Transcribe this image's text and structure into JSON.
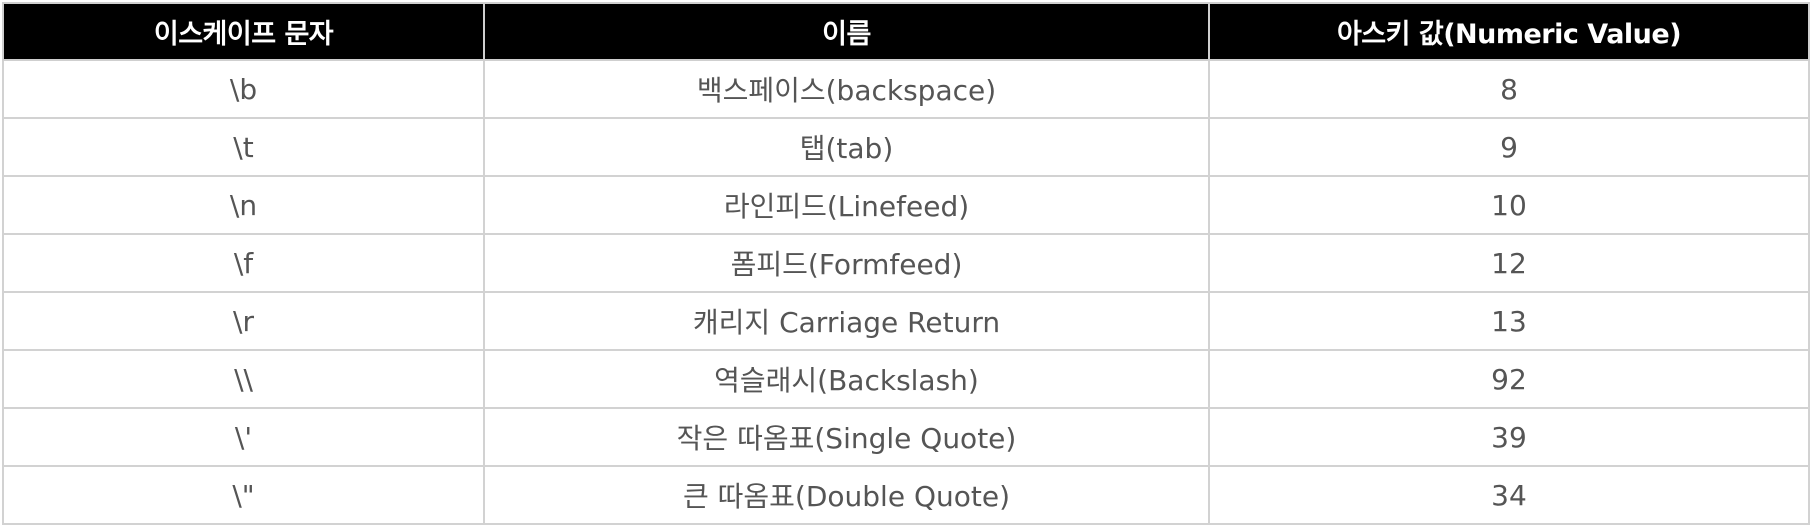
{
  "table": {
    "headers": [
      "이스케이프 문자",
      "이름",
      "아스키 값(Numeric Value)"
    ],
    "rows": [
      {
        "escape": "\\b",
        "name": "백스페이스(backspace)",
        "value": "8"
      },
      {
        "escape": "\\t",
        "name": "탭(tab)",
        "value": "9"
      },
      {
        "escape": "\\n",
        "name": "라인피드(Linefeed)",
        "value": "10"
      },
      {
        "escape": "\\f",
        "name": "폼피드(Formfeed)",
        "value": "12"
      },
      {
        "escape": "\\r",
        "name": "캐리지 Carriage Return",
        "value": "13"
      },
      {
        "escape": "\\\\",
        "name": "역슬래시(Backslash)",
        "value": "92"
      },
      {
        "escape": "\\'",
        "name": "작은 따옴표(Single Quote)",
        "value": "39"
      },
      {
        "escape": "\\\"",
        "name": "큰 따옴표(Double Quote)",
        "value": "34"
      }
    ]
  }
}
